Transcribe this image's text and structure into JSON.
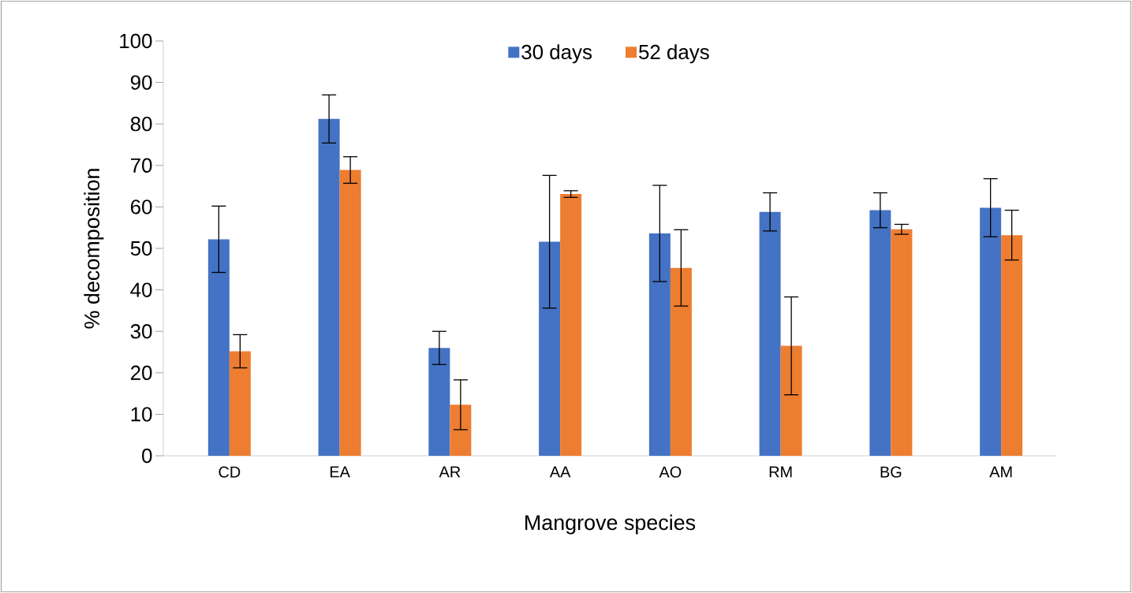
{
  "chart_data": {
    "type": "bar",
    "xlabel": "Mangrove species",
    "ylabel": "% decomposition",
    "categories": [
      "CD",
      "EA",
      "AR",
      "AA",
      "AO",
      "RM",
      "BG",
      "AM"
    ],
    "series": [
      {
        "name": "30 days",
        "color": "#4472c4",
        "values": [
          52.2,
          81.2,
          26,
          51.6,
          53.6,
          58.8,
          59.2,
          59.8
        ],
        "errors": [
          8,
          5.8,
          4,
          16,
          11.6,
          4.6,
          4.2,
          7
        ]
      },
      {
        "name": "52 days",
        "color": "#ed7d31",
        "values": [
          25.2,
          68.9,
          12.3,
          63.1,
          45.3,
          26.5,
          54.6,
          53.2
        ],
        "errors": [
          4,
          3.2,
          6,
          0.8,
          9.2,
          11.8,
          1.2,
          6
        ]
      }
    ],
    "ylim": [
      0,
      100
    ],
    "yticks": [
      0,
      10,
      20,
      30,
      40,
      50,
      60,
      70,
      80,
      90,
      100
    ],
    "legend": "top",
    "grid": false
  }
}
